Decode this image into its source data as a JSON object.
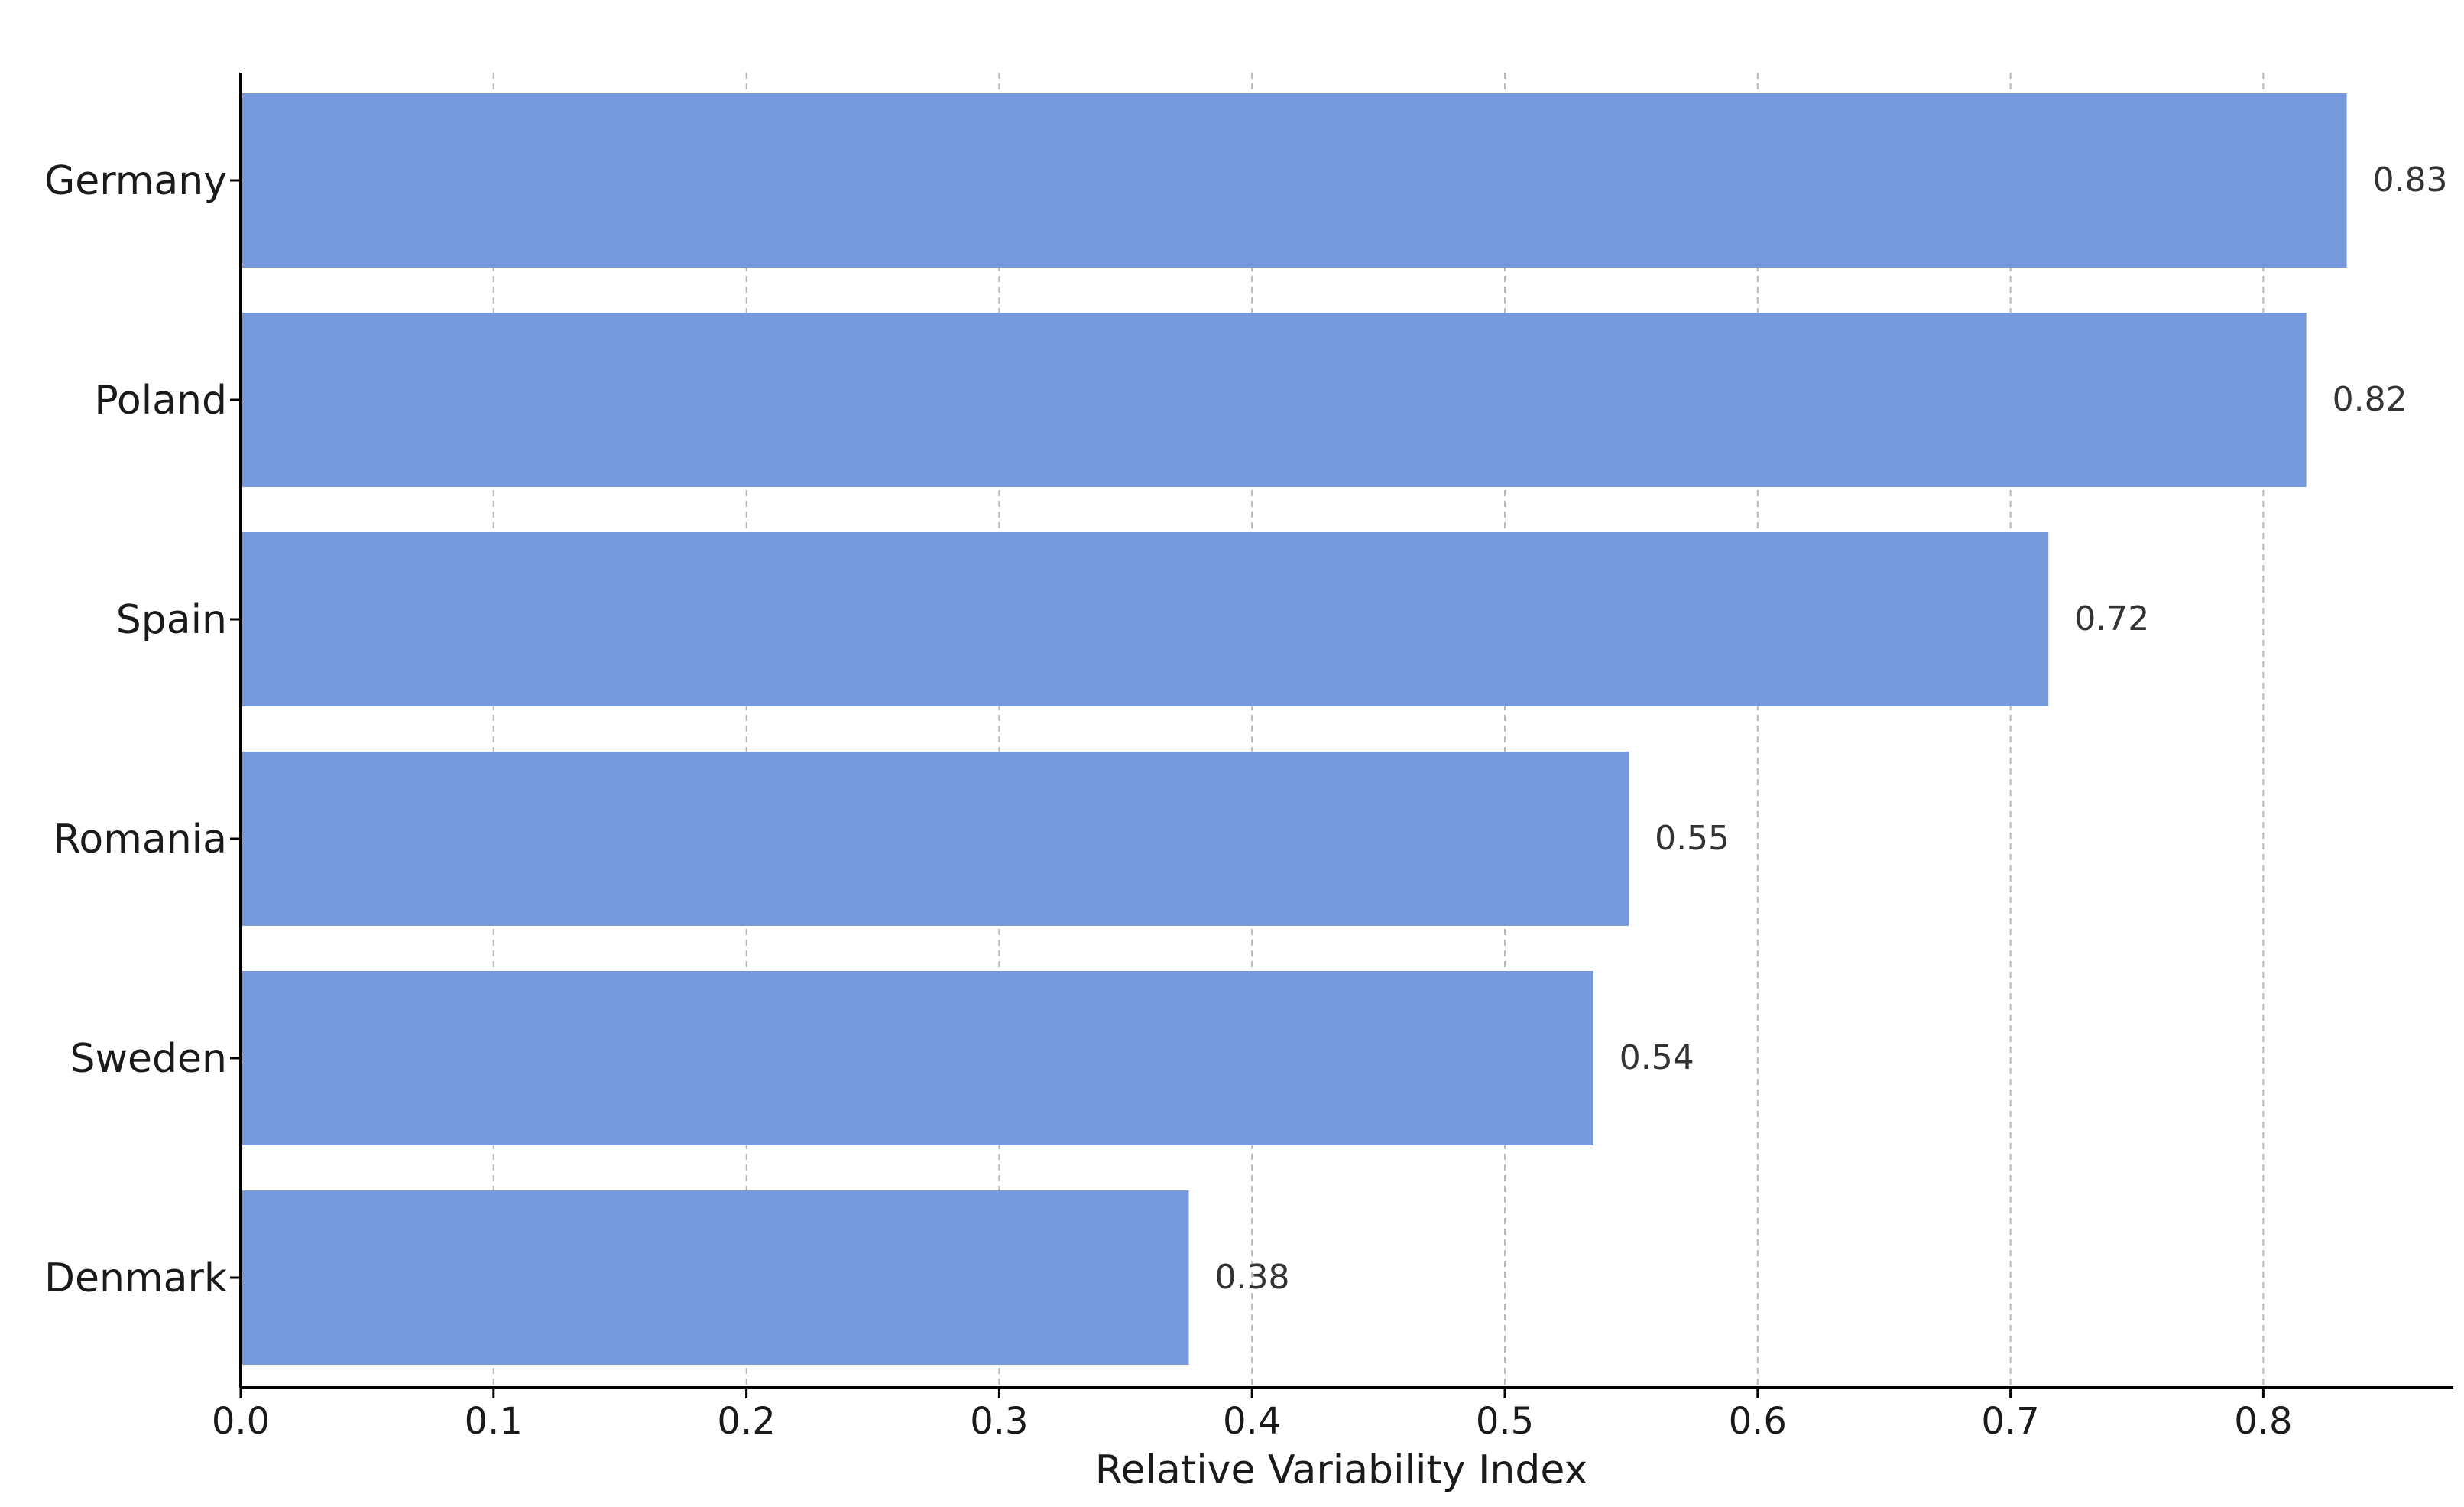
{
  "chart_data": {
    "type": "bar",
    "orientation": "horizontal",
    "categories": [
      "Germany",
      "Poland",
      "Spain",
      "Romania",
      "Sweden",
      "Denmark"
    ],
    "values": [
      0.833,
      0.817,
      0.715,
      0.549,
      0.535,
      0.375
    ],
    "value_labels": [
      "0.83",
      "0.82",
      "0.72",
      "0.55",
      "0.54",
      "0.38"
    ],
    "xlabel": "Relative Variability Index",
    "ylabel": "",
    "xlim": [
      0.0,
      0.875
    ],
    "x_ticks": [
      "0.0",
      "0.1",
      "0.2",
      "0.3",
      "0.4",
      "0.5",
      "0.6",
      "0.7",
      "0.8"
    ],
    "grid": "x-dashed",
    "bar_color": "#7599db"
  }
}
